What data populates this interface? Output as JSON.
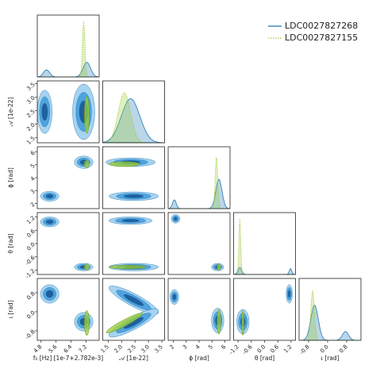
{
  "chart_data": {
    "type": "corner",
    "series": [
      {
        "name": "LDC0027827268",
        "color": "#1f77b4",
        "style": "solid"
      },
      {
        "name": "LDC0027827155",
        "color": "#9acd32",
        "style": "dotted"
      }
    ],
    "legend": "upper right",
    "params": [
      {
        "label": "f₀ [Hz] [1e-7+2.782e-3]",
        "lim": [
          4.6,
          7.9
        ],
        "ticks": [
          4.8,
          5.6,
          6.4,
          7.2
        ]
      },
      {
        "label": "𝒜 [1e-22]",
        "lim": [
          1.3,
          3.6
        ],
        "ticks": [
          1.5,
          {
            "value": 2,
            "label": "2.0"
          },
          2.5,
          {
            "value": 3,
            "label": "3.0"
          },
          3.5
        ]
      },
      {
        "label": "ϕ [rad]",
        "lim": [
          1.6,
          6.4
        ],
        "ticks": [
          2,
          3,
          4,
          5,
          6
        ]
      },
      {
        "label": "θ [rad]",
        "lim": [
          -1.4,
          1.4
        ],
        "ticks": [
          -1.2,
          -0.6,
          {
            "value": 0,
            "label": "0.0"
          },
          0.6,
          1.2
        ]
      },
      {
        "label": "ι [rad]",
        "lim": [
          -1.2,
          1.4
        ],
        "ticks": [
          -0.8,
          {
            "value": 0,
            "label": "0.0"
          },
          0.8
        ]
      }
    ]
  }
}
